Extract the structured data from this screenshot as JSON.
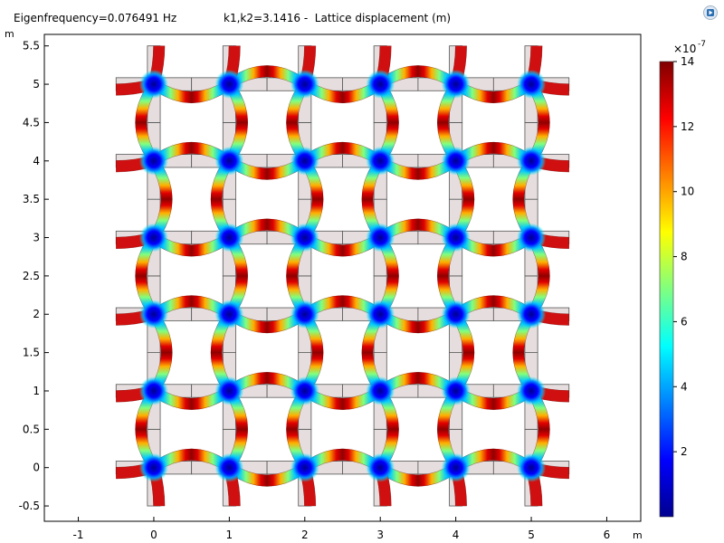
{
  "header": {
    "eigen_text": "Eigenfrequency=0.076491 Hz",
    "wave_text": "k1,k2=3.1416 -  Lattice displacement (m)",
    "corner_icon": "comsol-app-icon"
  },
  "chart_data": {
    "type": "heatmap",
    "title": "Eigenfrequency=0.076491 Hz   k1,k2=3.1416 -  Lattice displacement (m)",
    "xlabel": "m",
    "ylabel": "m",
    "xlim": [
      -1.45,
      6.45
    ],
    "ylim": [
      -0.7,
      5.65
    ],
    "x_ticks": [
      "-1",
      "0",
      "1",
      "2",
      "3",
      "4",
      "5",
      "6"
    ],
    "y_ticks": [
      "-0.5",
      "0",
      "0.5",
      "1",
      "1.5",
      "2",
      "2.5",
      "3",
      "3.5",
      "4",
      "4.5",
      "5",
      "5.5"
    ],
    "x_tick_values": [
      -1,
      0,
      1,
      2,
      3,
      4,
      5,
      6
    ],
    "y_tick_values": [
      -0.5,
      0,
      0.5,
      1,
      1.5,
      2,
      2.5,
      3,
      3.5,
      4,
      4.5,
      5,
      5.5
    ],
    "lattice_nodes_x": [
      0,
      1,
      2,
      3,
      4,
      5
    ],
    "lattice_nodes_y": [
      0,
      1,
      2,
      3,
      4,
      5
    ],
    "colorbar": {
      "multiplier": "×10",
      "exponent": "-7",
      "ticks": [
        "2",
        "4",
        "6",
        "8",
        "10",
        "12",
        "14"
      ],
      "tick_values": [
        2,
        4,
        6,
        8,
        10,
        12,
        14
      ],
      "range": [
        0,
        14
      ],
      "colormap": [
        "#00008f",
        "#0000ff",
        "#0080ff",
        "#00ffff",
        "#80ff80",
        "#ffff00",
        "#ff8000",
        "#ff0000",
        "#800000"
      ]
    },
    "legend": "right",
    "grid": false
  }
}
